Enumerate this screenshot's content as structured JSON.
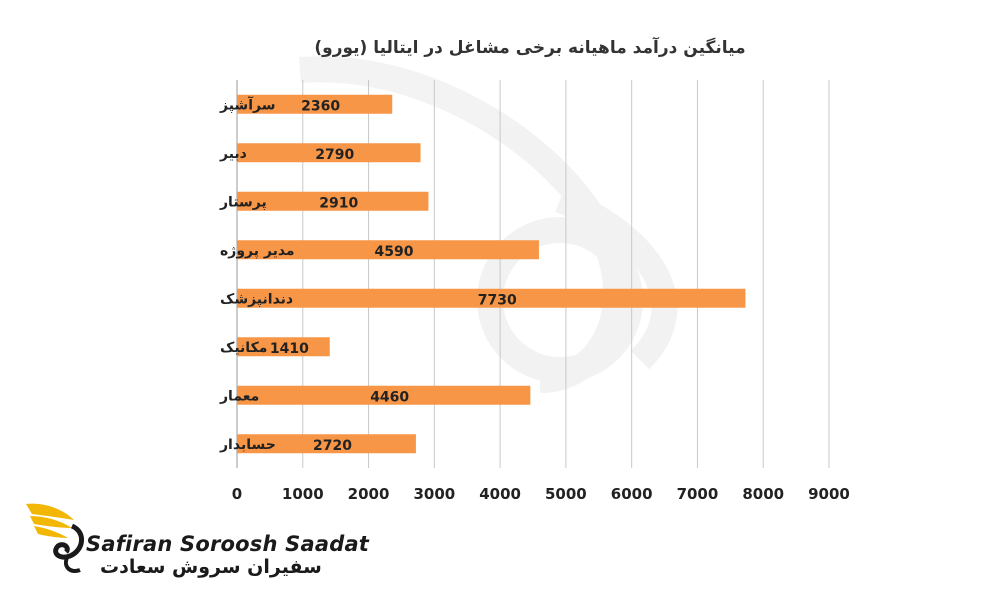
{
  "chart_data": {
    "type": "bar",
    "orientation": "horizontal",
    "title": "میانگین درآمد ماهیانه برخی مشاغل در ایتالیا (یورو)",
    "categories": [
      "سرآشپز",
      "دبیر",
      "پرستار",
      "مدیر پروژه",
      "دندانپزشک",
      "مکانیک",
      "معمار",
      "حسابدار"
    ],
    "values": [
      2360,
      2790,
      2910,
      4590,
      7730,
      1410,
      4460,
      2720
    ],
    "xlim": [
      0,
      9000
    ],
    "x_ticks": [
      0,
      1000,
      2000,
      3000,
      4000,
      5000,
      6000,
      7000,
      8000,
      9000
    ],
    "grid": "vertical",
    "bar_color": "#F79646",
    "legend": "none"
  },
  "brand": {
    "name_en": "Safiran Soroosh Saadat",
    "name_fa": "سفیران سروش سعادت",
    "logo_icon": "winged-swan-logo",
    "accent_color": "#F2B705"
  }
}
